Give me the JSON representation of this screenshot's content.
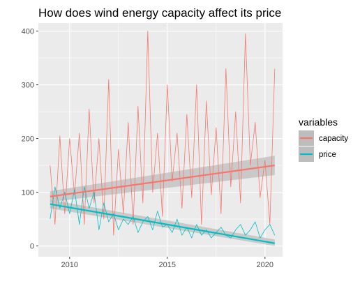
{
  "chart_data": {
    "type": "line",
    "title": "How does wind energy capacity affect its price",
    "xlabel": "",
    "ylabel": "",
    "xlim": [
      2008.4,
      2020.9
    ],
    "ylim": [
      -20,
      415
    ],
    "x_ticks": [
      2010,
      2015,
      2020
    ],
    "y_ticks": [
      0,
      100,
      200,
      300,
      400
    ],
    "grid": true,
    "legend": {
      "title": "variables",
      "position": "right"
    },
    "colors": {
      "capacity": "#F8766D",
      "price": "#00BFC4",
      "band": "#bdbdbd",
      "panel": "#ebebeb"
    },
    "series": [
      {
        "name": "capacity",
        "x": [
          2009.0,
          2009.25,
          2009.5,
          2009.75,
          2010.0,
          2010.25,
          2010.5,
          2010.75,
          2011.0,
          2011.25,
          2011.5,
          2011.75,
          2012.0,
          2012.25,
          2012.5,
          2012.75,
          2013.0,
          2013.25,
          2013.5,
          2013.75,
          2014.0,
          2014.25,
          2014.5,
          2014.75,
          2015.0,
          2015.25,
          2015.5,
          2015.75,
          2016.0,
          2016.25,
          2016.5,
          2016.75,
          2017.0,
          2017.25,
          2017.5,
          2017.75,
          2018.0,
          2018.25,
          2018.5,
          2018.75,
          2019.0,
          2019.25,
          2019.5,
          2019.75,
          2020.0,
          2020.25,
          2020.5
        ],
        "values": [
          150,
          40,
          205,
          60,
          200,
          95,
          210,
          40,
          255,
          80,
          200,
          50,
          310,
          20,
          180,
          60,
          230,
          40,
          260,
          80,
          400,
          100,
          210,
          55,
          300,
          120,
          210,
          70,
          245,
          90,
          300,
          40,
          270,
          95,
          220,
          60,
          330,
          110,
          250,
          80,
          395,
          150,
          230,
          90,
          160,
          40,
          330
        ],
        "fit": {
          "start": 92,
          "end": 150,
          "band_low_start": 82,
          "band_high_start": 102,
          "band_low_end": 132,
          "band_high_end": 168
        }
      },
      {
        "name": "price",
        "x": [
          2009.0,
          2009.25,
          2009.5,
          2009.75,
          2010.0,
          2010.25,
          2010.5,
          2010.75,
          2011.0,
          2011.25,
          2011.5,
          2011.75,
          2012.0,
          2012.25,
          2012.5,
          2012.75,
          2013.0,
          2013.25,
          2013.5,
          2013.75,
          2014.0,
          2014.25,
          2014.5,
          2014.75,
          2015.0,
          2015.25,
          2015.5,
          2015.75,
          2016.0,
          2016.25,
          2016.5,
          2016.75,
          2017.0,
          2017.25,
          2017.5,
          2017.75,
          2018.0,
          2018.25,
          2018.5,
          2018.75,
          2019.0,
          2019.25,
          2019.5,
          2019.75,
          2020.0,
          2020.25,
          2020.5
        ],
        "values": [
          50,
          110,
          70,
          100,
          60,
          105,
          40,
          110,
          70,
          100,
          30,
          80,
          45,
          60,
          30,
          50,
          40,
          55,
          25,
          45,
          55,
          30,
          65,
          35,
          40,
          25,
          50,
          20,
          35,
          15,
          40,
          20,
          30,
          15,
          25,
          35,
          20,
          15,
          30,
          40,
          20,
          30,
          45,
          15,
          30,
          40,
          20
        ],
        "fit": {
          "start": 78,
          "end": 5,
          "band_low_start": 70,
          "band_high_start": 86,
          "band_low_end": 0,
          "band_high_end": 12
        }
      }
    ]
  }
}
